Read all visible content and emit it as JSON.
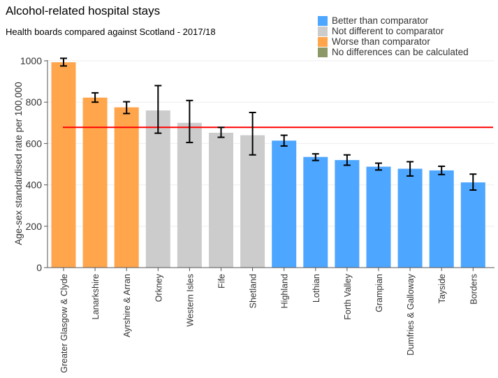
{
  "chart_data": {
    "type": "bar",
    "title": "Alcohol-related hospital stays",
    "subtitle": "Health boards compared against Scotland - 2017/18",
    "ylabel": "Age-sex standardised rate per 100,000",
    "xlabel": "",
    "ylim": [
      0,
      1000
    ],
    "yticks": [
      0,
      200,
      400,
      600,
      800,
      1000
    ],
    "grid": true,
    "legend_position": "top-right",
    "comparator": {
      "value": 678,
      "color": "#ff0000"
    },
    "legend": [
      {
        "key": "better",
        "label": "Better than comparator",
        "color": "#4da6ff"
      },
      {
        "key": "same",
        "label": "Not different to comparator",
        "color": "#cccccc"
      },
      {
        "key": "worse",
        "label": "Worse than comparator",
        "color": "#ffa64d"
      },
      {
        "key": "na",
        "label": "No differences can be calculated",
        "color": "#8c9966"
      }
    ],
    "categories": [
      "Greater Glasgow & Clyde",
      "Lanarkshire",
      "Ayrshire & Arran",
      "Orkney",
      "Western Isles",
      "Fife",
      "Shetland",
      "Highland",
      "Lothian",
      "Forth Valley",
      "Grampian",
      "Dumfries & Galloway",
      "Tayside",
      "Borders"
    ],
    "values": [
      993,
      822,
      775,
      760,
      700,
      652,
      640,
      614,
      535,
      520,
      488,
      478,
      470,
      412
    ],
    "ci_lower": [
      975,
      800,
      745,
      650,
      605,
      630,
      545,
      588,
      518,
      495,
      472,
      443,
      450,
      375
    ],
    "ci_upper": [
      1012,
      845,
      802,
      880,
      808,
      678,
      750,
      640,
      550,
      545,
      505,
      512,
      490,
      452
    ],
    "status": [
      "worse",
      "worse",
      "worse",
      "same",
      "same",
      "same",
      "same",
      "better",
      "better",
      "better",
      "better",
      "better",
      "better",
      "better"
    ]
  }
}
